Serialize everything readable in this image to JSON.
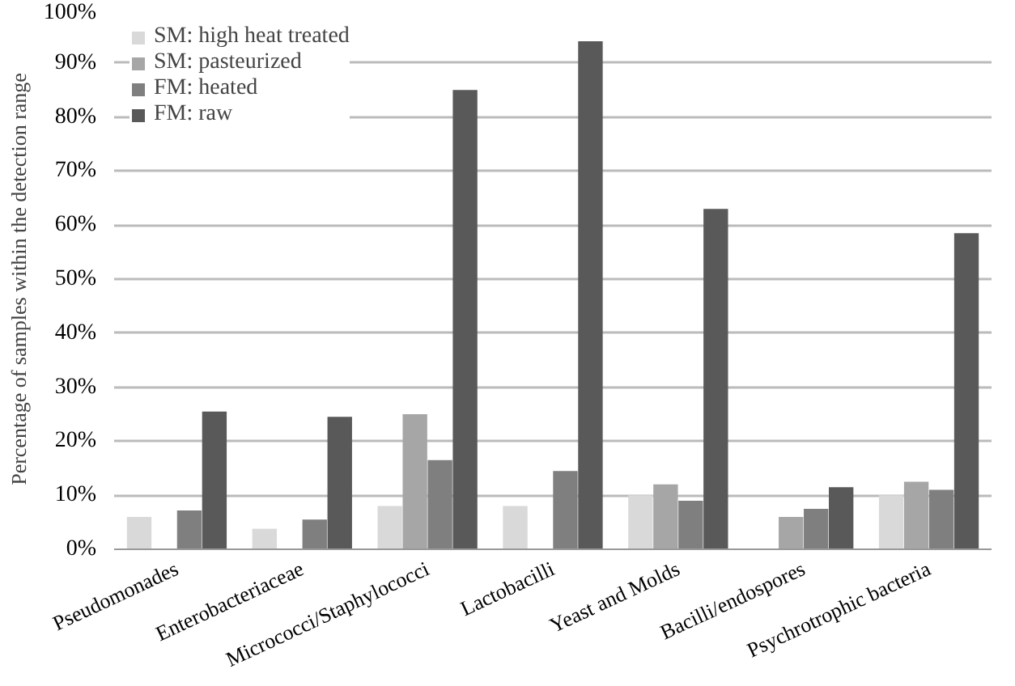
{
  "chart_data": {
    "type": "bar",
    "ylabel": "Percentage of samples within the detection range",
    "categories": [
      "Pseudomonades",
      "Enterobacteriaceae",
      "Micrococci/Staphylococci",
      "Lactobacilli",
      "Yeast and Molds",
      "Bacilli/endospores",
      "Psychrotrophic bacteria"
    ],
    "series": [
      {
        "name": "SM: high heat treated",
        "color": "#d9d9d9",
        "values": [
          6,
          3.8,
          8,
          8,
          10,
          0,
          10
        ]
      },
      {
        "name": "SM: pasteurized",
        "color": "#a6a6a6",
        "values": [
          0,
          0,
          25,
          0,
          12,
          6,
          12.5
        ]
      },
      {
        "name": "FM: heated",
        "color": "#7f7f7f",
        "values": [
          7.2,
          5.5,
          16.5,
          14.5,
          9,
          7.5,
          11
        ]
      },
      {
        "name": "FM: raw",
        "color": "#595959",
        "values": [
          25.5,
          24.5,
          85,
          94,
          63,
          11.5,
          58.5
        ]
      }
    ],
    "ylim": [
      0,
      100
    ],
    "yticks": [
      {
        "value": 0,
        "label": "0%"
      },
      {
        "value": 10,
        "label": "10%"
      },
      {
        "value": 20,
        "label": "20%"
      },
      {
        "value": 30,
        "label": "30%"
      },
      {
        "value": 40,
        "label": "40%"
      },
      {
        "value": 50,
        "label": "50%"
      },
      {
        "value": 60,
        "label": "60%"
      },
      {
        "value": 70,
        "label": "70%"
      },
      {
        "value": 80,
        "label": "80%"
      },
      {
        "value": 90,
        "label": "90%"
      },
      {
        "value": 100,
        "label": "100%"
      }
    ],
    "grid": "y",
    "legend": "top left"
  }
}
